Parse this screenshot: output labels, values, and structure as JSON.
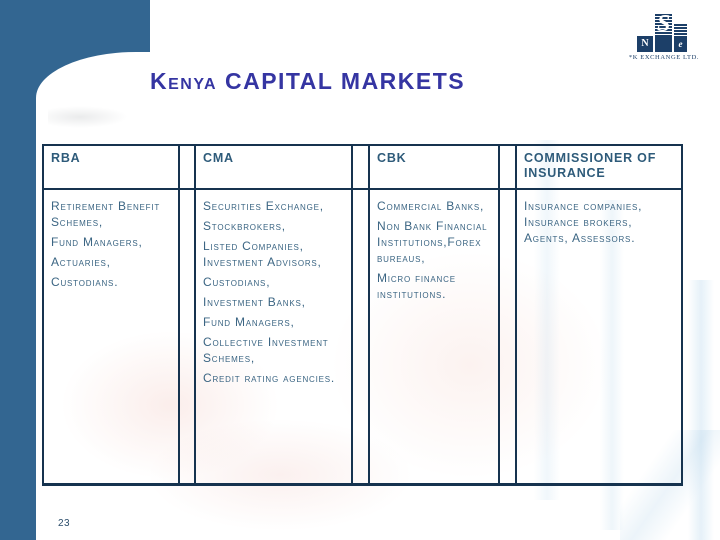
{
  "slide": {
    "title": "Kenya CAPITAL MARKETS",
    "page_number": "23"
  },
  "logo": {
    "letters": {
      "n": "N",
      "s": "S",
      "e": "e"
    },
    "caption": "*K EXCHANGE LTD."
  },
  "table": {
    "columns": [
      {
        "header": "RBA",
        "items": [
          "Retirement Benefit Schemes,",
          "Fund Managers,",
          "Actuaries,",
          "Custodians."
        ]
      },
      {
        "header": "CMA",
        "items": [
          "Securities Exchange,",
          "Stockbrokers,",
          "Listed Companies, Investment Advisors,",
          "Custodians,",
          "Investment Banks,",
          "Fund Managers,",
          "Collective Investment Schemes,",
          "Credit rating agencies."
        ]
      },
      {
        "header": "CBK",
        "items": [
          "Commercial Banks,",
          "Non Bank Financial Institutions,Forex bureaus,",
          "Micro finance institutions."
        ]
      },
      {
        "header": "COMMISSIONER OF INSURANCE",
        "items": [
          "Insurance companies, Insurance brokers, Agents, Assessors."
        ]
      }
    ]
  },
  "colors": {
    "accent_blue": "#336691",
    "border_navy": "#16334f",
    "body_text": "#3b6583",
    "header_text": "#2e5b7a",
    "title_indigo": "#3535a2",
    "logo_navy": "#1c3f68"
  }
}
